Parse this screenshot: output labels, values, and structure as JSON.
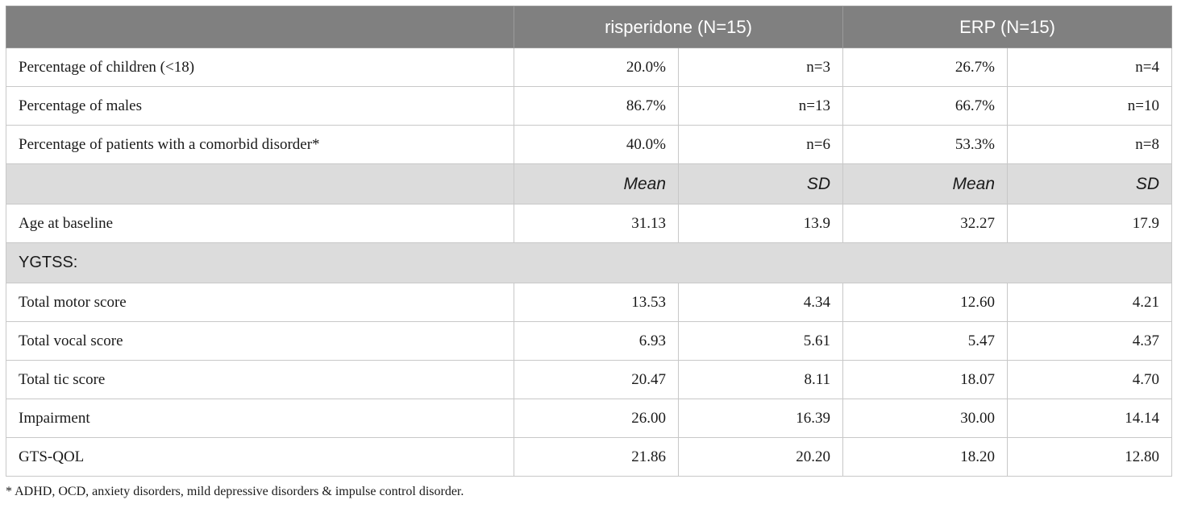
{
  "table": {
    "header": {
      "blank": "",
      "group1": "risperidone (N=15)",
      "group2": "ERP (N=15)"
    },
    "pct_rows": [
      {
        "label": "Percentage of children (<18)",
        "r_pct": "20.0%",
        "r_n": "n=3",
        "e_pct": "26.7%",
        "e_n": "n=4"
      },
      {
        "label": "Percentage of males",
        "r_pct": "86.7%",
        "r_n": "n=13",
        "e_pct": "66.7%",
        "e_n": "n=10"
      },
      {
        "label": "Percentage of patients with a comorbid disorder*",
        "r_pct": "40.0%",
        "r_n": "n=6",
        "e_pct": "53.3%",
        "e_n": "n=8"
      }
    ],
    "stat_header": {
      "mean": "Mean",
      "sd": "SD"
    },
    "age_row": {
      "label": "Age at baseline",
      "r_mean": "31.13",
      "r_sd": "13.9",
      "e_mean": "32.27",
      "e_sd": "17.9"
    },
    "section_label": "YGTSS:",
    "ygtss_rows": [
      {
        "label": "Total motor score",
        "r_mean": "13.53",
        "r_sd": "4.34",
        "e_mean": "12.60",
        "e_sd": "4.21"
      },
      {
        "label": "Total vocal score",
        "r_mean": "6.93",
        "r_sd": "5.61",
        "e_mean": "5.47",
        "e_sd": "4.37"
      },
      {
        "label": "Total tic score",
        "r_mean": "20.47",
        "r_sd": "8.11",
        "e_mean": "18.07",
        "e_sd": "4.70"
      },
      {
        "label": "Impairment",
        "r_mean": "26.00",
        "r_sd": "16.39",
        "e_mean": "30.00",
        "e_sd": "14.14"
      }
    ],
    "qol_row": {
      "label": "GTS-QOL",
      "r_mean": "21.86",
      "r_sd": "20.20",
      "e_mean": "18.20",
      "e_sd": "12.80"
    }
  },
  "footnote": "* ADHD, OCD, anxiety disorders, mild depressive disorders & impulse control disorder."
}
